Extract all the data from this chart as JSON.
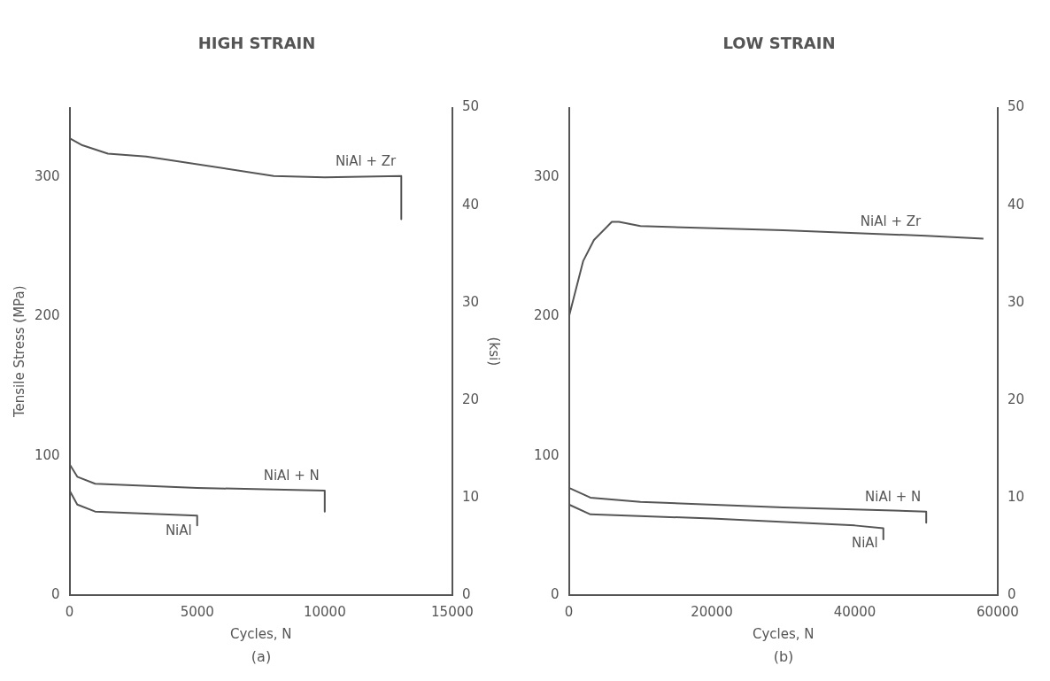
{
  "chart_data": [
    {
      "type": "line",
      "title": "HIGH STRAIN",
      "xlabel": "Cycles, N",
      "ylabel": "Tensile Stress (MPa)",
      "y2label": "(ksi)",
      "xlim": [
        0,
        15000
      ],
      "xticks": [
        0,
        5000,
        10000,
        15000
      ],
      "ylim": [
        0,
        350
      ],
      "yticks": [
        0,
        100,
        200,
        300
      ],
      "y2lim": [
        0,
        50
      ],
      "y2ticks": [
        0,
        10,
        20,
        30,
        40,
        50
      ],
      "grid": false,
      "legend": false,
      "annotations": [
        "(a)"
      ],
      "series": [
        {
          "name": "NiAl + Zr",
          "color": "#555555",
          "x": [
            0,
            500,
            1500,
            3000,
            8000,
            10000,
            13000,
            13000
          ],
          "values": [
            328,
            323,
            317,
            315,
            301,
            300,
            301,
            270
          ]
        },
        {
          "name": "NiAl + N",
          "color": "#555555",
          "x": [
            0,
            300,
            1000,
            5000,
            10000,
            10000
          ],
          "values": [
            94,
            85,
            80,
            77,
            75,
            60
          ]
        },
        {
          "name": "NiAl",
          "color": "#555555",
          "x": [
            0,
            300,
            1000,
            5000,
            5000
          ],
          "values": [
            75,
            65,
            60,
            57,
            50
          ]
        }
      ]
    },
    {
      "type": "line",
      "title": "LOW STRAIN",
      "xlabel": "Cycles, N",
      "xlim": [
        0,
        60000
      ],
      "xticks": [
        0,
        20000,
        40000,
        60000
      ],
      "ylim": [
        0,
        350
      ],
      "yticks": [
        0,
        100,
        200,
        300
      ],
      "y2lim": [
        0,
        50
      ],
      "y2ticks": [
        0,
        10,
        20,
        30,
        40,
        50
      ],
      "grid": false,
      "legend": false,
      "annotations": [
        "(b)"
      ],
      "series": [
        {
          "name": "NiAl + Zr",
          "color": "#555555",
          "x": [
            0,
            2000,
            3500,
            6000,
            7000,
            10000,
            30000,
            50000,
            58000
          ],
          "values": [
            200,
            240,
            255,
            268,
            268,
            265,
            262,
            258,
            256
          ]
        },
        {
          "name": "NiAl + N",
          "color": "#555555",
          "x": [
            0,
            3000,
            10000,
            30000,
            50000,
            50000
          ],
          "values": [
            77,
            70,
            67,
            63,
            60,
            52
          ]
        },
        {
          "name": "NiAl",
          "color": "#555555",
          "x": [
            0,
            3000,
            20000,
            40000,
            44000,
            44000
          ],
          "values": [
            65,
            58,
            55,
            50,
            48,
            40
          ]
        }
      ]
    }
  ]
}
